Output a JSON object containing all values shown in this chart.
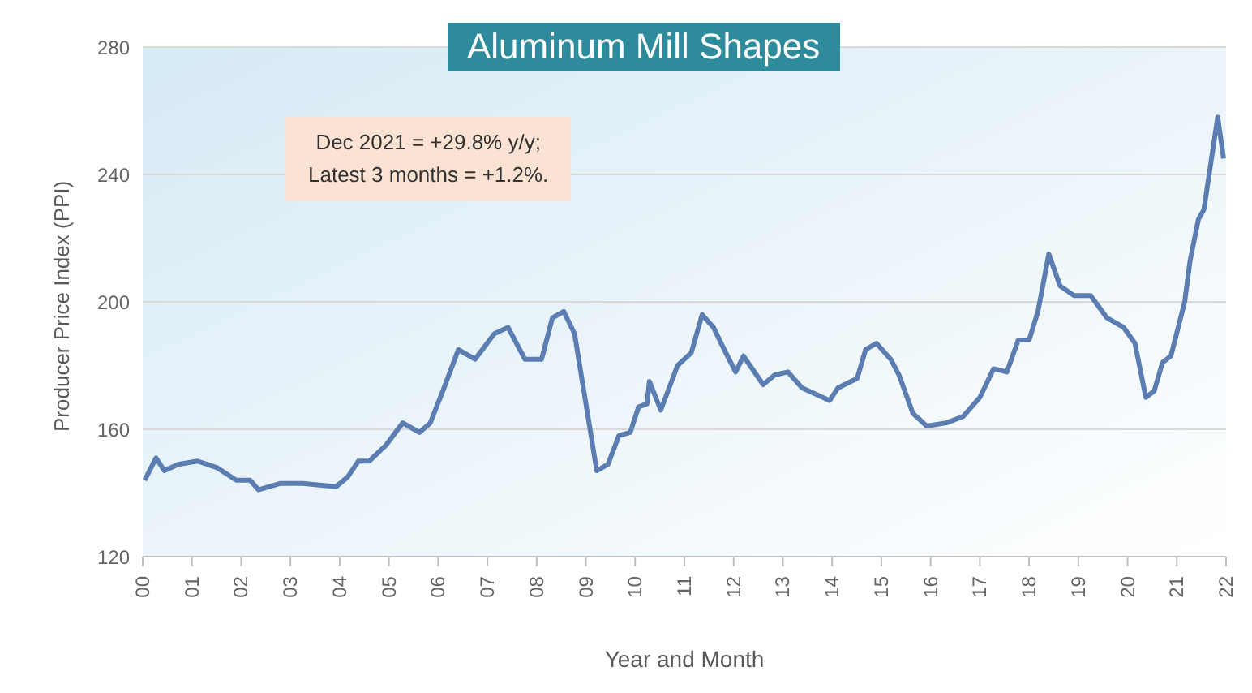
{
  "chart_data": {
    "type": "line",
    "title": "Aluminum Mill Shapes",
    "xlabel": "Year and Month",
    "ylabel": "Producer Price Index (PPI)",
    "annotations": [
      "Dec 2021 = +29.8% y/y;\nLatest 3 months = +1.2%."
    ],
    "x": [
      2000.04,
      2000.27,
      2000.44,
      2000.72,
      2001.11,
      2001.5,
      2001.9,
      2002.18,
      2002.35,
      2002.8,
      2003.25,
      2003.93,
      2004.16,
      2004.38,
      2004.6,
      2004.94,
      2005.28,
      2005.62,
      2005.84,
      2006.12,
      2006.41,
      2006.75,
      2007.14,
      2007.42,
      2007.76,
      2008.1,
      2008.32,
      2008.55,
      2008.77,
      2009.0,
      2009.22,
      2009.45,
      2009.67,
      2009.9,
      2010.07,
      2010.24,
      2010.29,
      2010.52,
      2010.86,
      2011.14,
      2011.36,
      2011.59,
      2011.81,
      2012.04,
      2012.2,
      2012.6,
      2012.83,
      2013.1,
      2013.39,
      2013.95,
      2014.12,
      2014.51,
      2014.68,
      2014.9,
      2015.19,
      2015.36,
      2015.64,
      2015.92,
      2016.32,
      2016.66,
      2017.0,
      2017.28,
      2017.55,
      2017.78,
      2018.0,
      2018.18,
      2018.4,
      2018.63,
      2018.91,
      2019.25,
      2019.58,
      2019.92,
      2020.15,
      2020.37,
      2020.54,
      2020.71,
      2020.88,
      2021.16,
      2021.27,
      2021.44,
      2021.55,
      2021.83,
      2021.95
    ],
    "series": [
      {
        "color": "#5b7db1",
        "values": [
          144,
          151,
          147,
          149,
          150,
          148,
          144,
          144,
          141,
          143,
          143,
          142,
          145,
          150,
          150,
          155,
          162,
          159,
          162,
          173,
          185,
          182,
          190,
          192,
          182,
          182,
          195,
          197,
          190,
          168,
          147,
          149,
          158,
          159,
          167,
          168,
          175,
          166,
          180,
          184,
          196,
          192,
          185,
          178,
          183,
          174,
          177,
          178,
          173,
          169,
          173,
          176,
          185,
          187,
          182,
          177,
          165,
          161,
          162,
          164,
          170,
          179,
          178,
          188,
          188,
          197,
          215,
          205,
          202,
          202,
          195,
          192,
          187,
          170,
          172,
          181,
          183,
          200,
          213,
          226,
          229,
          258,
          245
        ]
      }
    ],
    "xlim": [
      2000,
      2022
    ],
    "xticks": [
      {
        "value": 2000,
        "label": "00"
      },
      {
        "value": 2001,
        "label": "01"
      },
      {
        "value": 2002,
        "label": "02"
      },
      {
        "value": 2003,
        "label": "03"
      },
      {
        "value": 2004,
        "label": "04"
      },
      {
        "value": 2005,
        "label": "05"
      },
      {
        "value": 2006,
        "label": "06"
      },
      {
        "value": 2007,
        "label": "07"
      },
      {
        "value": 2008,
        "label": "08"
      },
      {
        "value": 2009,
        "label": "09"
      },
      {
        "value": 2010,
        "label": "10"
      },
      {
        "value": 2011,
        "label": "11"
      },
      {
        "value": 2012,
        "label": "12"
      },
      {
        "value": 2013,
        "label": "13"
      },
      {
        "value": 2014,
        "label": "14"
      },
      {
        "value": 2015,
        "label": "15"
      },
      {
        "value": 2016,
        "label": "16"
      },
      {
        "value": 2017,
        "label": "17"
      },
      {
        "value": 2018,
        "label": "18"
      },
      {
        "value": 2019,
        "label": "19"
      },
      {
        "value": 2020,
        "label": "20"
      },
      {
        "value": 2021,
        "label": "21"
      },
      {
        "value": 2022,
        "label": "22"
      }
    ],
    "ylim": [
      120,
      280
    ],
    "yticks": [
      120,
      160,
      200,
      240,
      280
    ],
    "grid": "y",
    "marker": "none",
    "line_style": "solid"
  }
}
